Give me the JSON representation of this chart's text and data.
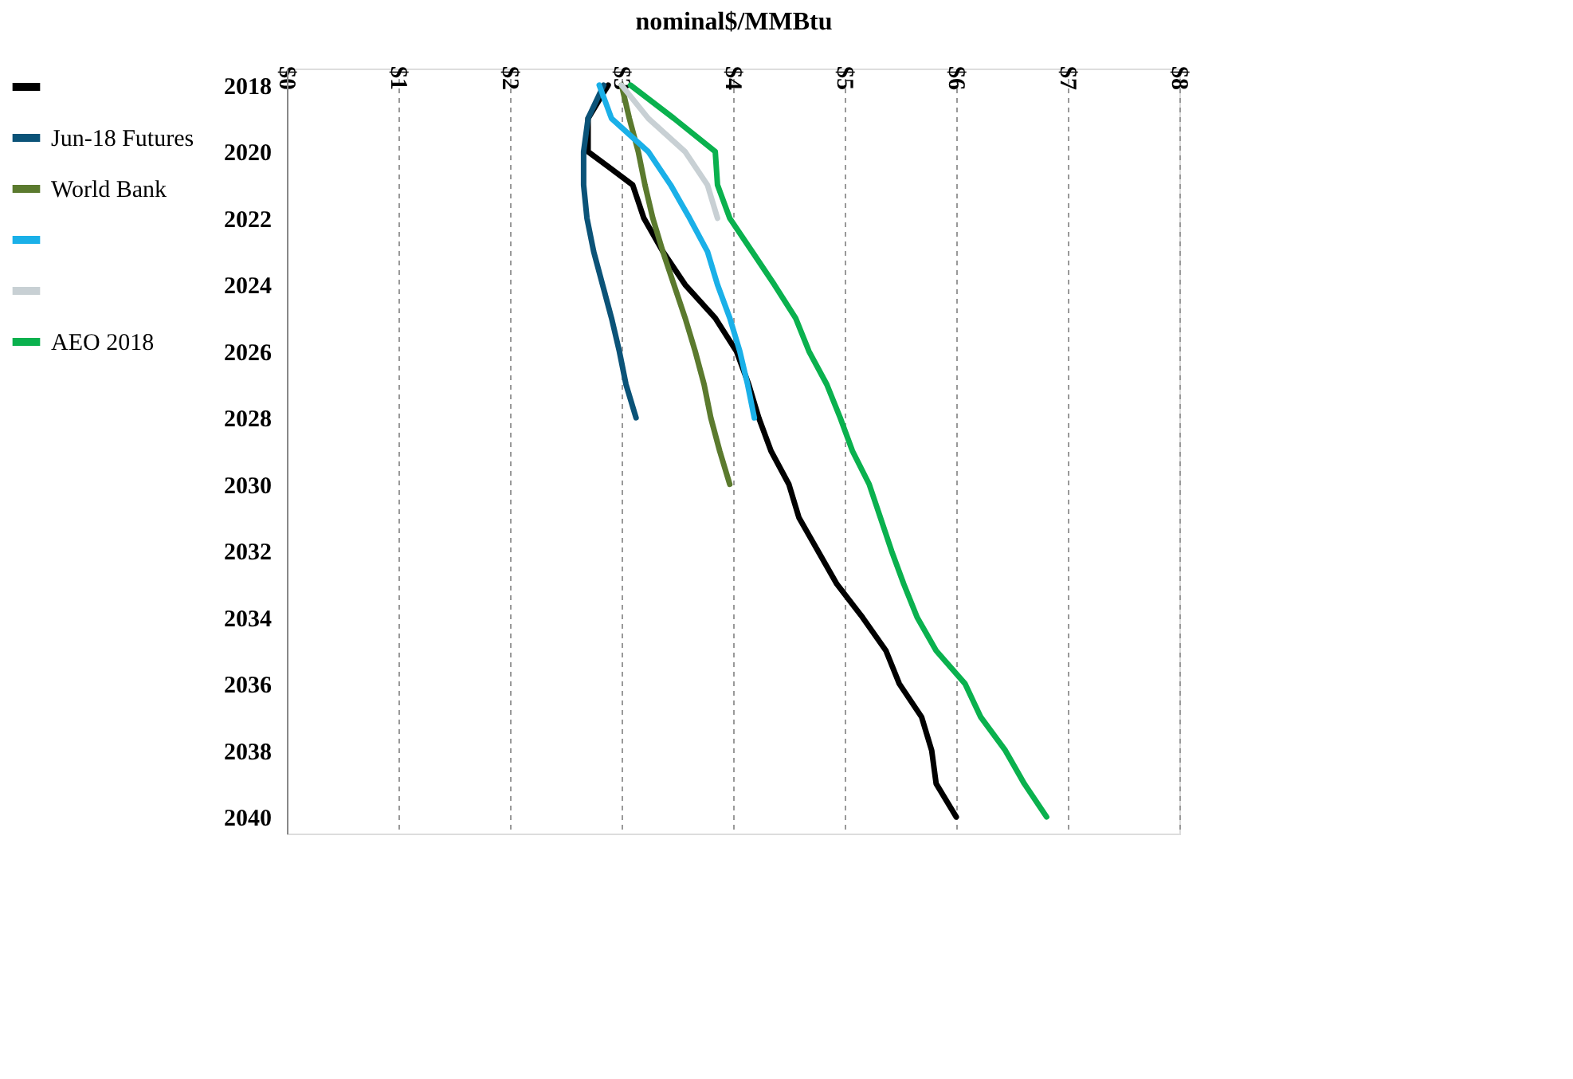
{
  "chart_data": {
    "type": "line",
    "orientation": "horizontal",
    "xlabel": "nominal$/MMBtu",
    "categories": [
      "2018",
      null,
      "2020",
      null,
      "2022",
      null,
      "2024",
      null,
      "2026",
      null,
      "2028",
      null,
      "2030",
      null,
      "2032",
      null,
      "2034",
      null,
      "2036",
      null,
      "2038",
      null,
      "2040"
    ],
    "xlim": [
      0,
      8
    ],
    "xticks": [
      {
        "value": 0,
        "label": "$0"
      },
      {
        "value": 1,
        "label": "$1"
      },
      {
        "value": 2,
        "label": "$2"
      },
      {
        "value": 3,
        "label": "$3"
      },
      {
        "value": 4,
        "label": "$4"
      },
      {
        "value": 5,
        "label": "$5"
      },
      {
        "value": 6,
        "label": "$6"
      },
      {
        "value": 7,
        "label": "$7"
      },
      {
        "value": 8,
        "label": "$8"
      }
    ],
    "grid": "x",
    "legend": "left",
    "line_style": "solid",
    "marker": "none",
    "series": [
      {
        "color": "#000000",
        "values": [
          2.88,
          2.7,
          2.7,
          3.1,
          3.2,
          3.37,
          3.57,
          3.84,
          4.03,
          4.14,
          4.23,
          4.34,
          4.5,
          4.59,
          4.76,
          4.93,
          5.16,
          5.37,
          5.49,
          5.69,
          5.78,
          5.82,
          6.0
        ]
      },
      {
        "name": "Jun-18 Futures",
        "color": "#0b5378",
        "values": [
          2.84,
          2.7,
          2.66,
          2.66,
          2.69,
          2.75,
          2.83,
          2.91,
          2.98,
          3.04,
          3.13,
          null,
          null,
          null,
          null,
          null,
          null,
          null,
          null,
          null,
          null,
          null,
          null
        ]
      },
      {
        "name": "World Bank",
        "color": "#5b7a2e",
        "values": [
          3.0,
          3.07,
          3.15,
          3.21,
          3.28,
          3.37,
          3.47,
          3.57,
          3.66,
          3.74,
          3.8,
          3.88,
          3.97,
          null,
          null,
          null,
          null,
          null,
          null,
          null,
          null,
          null,
          null
        ]
      },
      {
        "color": "#1ab0e8",
        "values": [
          2.8,
          2.91,
          3.24,
          3.44,
          3.61,
          3.77,
          3.86,
          3.97,
          4.06,
          4.13,
          4.19,
          null,
          null,
          null,
          null,
          null,
          null,
          null,
          null,
          null,
          null,
          null,
          null
        ]
      },
      {
        "color": "#c8d0d4",
        "values": [
          3.0,
          3.24,
          3.57,
          3.77,
          3.86,
          null,
          null,
          null,
          null,
          null,
          null,
          null,
          null,
          null,
          null,
          null,
          null,
          null,
          null,
          null,
          null,
          null,
          null
        ]
      },
      {
        "name": "AEO 2018",
        "color": "#0ab14e",
        "values": [
          3.08,
          3.47,
          3.84,
          3.86,
          3.97,
          4.17,
          4.37,
          4.56,
          4.68,
          4.84,
          4.96,
          5.07,
          5.22,
          5.32,
          5.42,
          5.53,
          5.65,
          5.82,
          6.08,
          6.22,
          6.44,
          6.61,
          6.81
        ]
      }
    ]
  }
}
